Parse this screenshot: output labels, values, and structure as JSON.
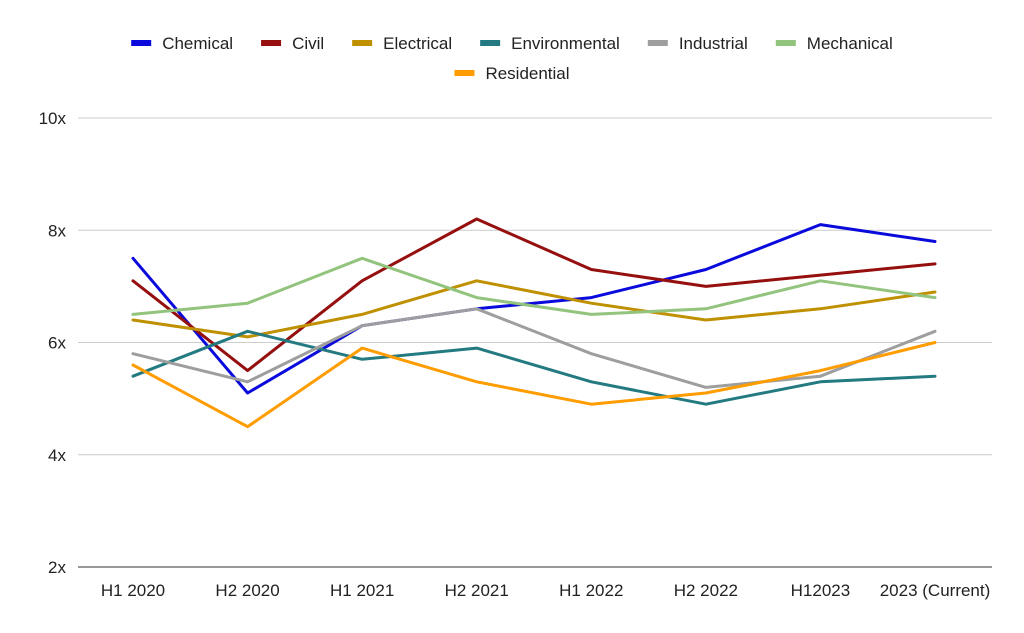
{
  "chart_data": {
    "type": "line",
    "title": "",
    "xlabel": "",
    "ylabel": "",
    "categories": [
      "H1 2020",
      "H2 2020",
      "H1 2021",
      "H2 2021",
      "H1 2022",
      "H2 2022",
      "H12023",
      "2023 (Current)"
    ],
    "ylim": [
      2,
      10
    ],
    "yticks": [
      2,
      4,
      6,
      8,
      10
    ],
    "ytick_labels": [
      "2x",
      "4x",
      "6x",
      "8x",
      "10x"
    ],
    "grid": true,
    "legend_position": "top",
    "series": [
      {
        "name": "Chemical",
        "color": "#0a0adc",
        "values": [
          7.5,
          5.1,
          6.3,
          6.6,
          6.8,
          7.3,
          8.1,
          7.8
        ]
      },
      {
        "name": "Civil",
        "color": "#960f0f",
        "values": [
          7.1,
          5.5,
          7.1,
          8.2,
          7.3,
          7.0,
          7.2,
          7.4
        ]
      },
      {
        "name": "Electrical",
        "color": "#bf9000",
        "values": [
          6.4,
          6.1,
          6.5,
          7.1,
          6.7,
          6.4,
          6.6,
          6.9
        ]
      },
      {
        "name": "Environmental",
        "color": "#237a80",
        "values": [
          5.4,
          6.2,
          5.7,
          5.9,
          5.3,
          4.9,
          5.3,
          5.4
        ]
      },
      {
        "name": "Industrial",
        "color": "#9e9e9e",
        "values": [
          5.8,
          5.3,
          6.3,
          6.6,
          5.8,
          5.2,
          5.4,
          6.2
        ]
      },
      {
        "name": "Mechanical",
        "color": "#93c47d",
        "values": [
          6.5,
          6.7,
          7.5,
          6.8,
          6.5,
          6.6,
          7.1,
          6.8
        ]
      },
      {
        "name": "Residential",
        "color": "#ff9c00",
        "values": [
          5.6,
          4.5,
          5.9,
          5.3,
          4.9,
          5.1,
          5.5,
          6.0
        ]
      }
    ]
  }
}
